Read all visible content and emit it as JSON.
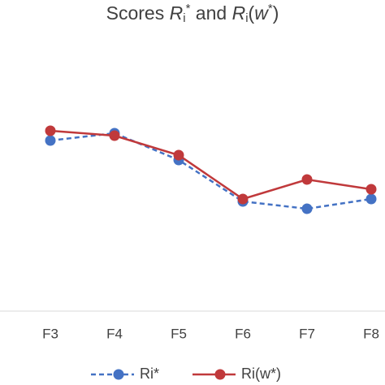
{
  "chart_data": {
    "type": "line",
    "title": [
      "Scores ",
      "R",
      "i",
      "*",
      " and ",
      "R",
      "i",
      "(",
      "w",
      "*",
      ")"
    ],
    "categories": [
      "F3",
      "F4",
      "F5",
      "F6",
      "F7",
      "F8"
    ],
    "ylim": [
      0,
      1
    ],
    "series": [
      {
        "name": "Ri*",
        "color": "#4472c4",
        "dashed": true,
        "values": [
          0.7,
          0.73,
          0.62,
          0.45,
          0.42,
          0.46
        ]
      },
      {
        "name": "Ri(w*)",
        "color": "#c0393b",
        "dashed": false,
        "values": [
          0.74,
          0.72,
          0.64,
          0.46,
          0.54,
          0.5
        ]
      }
    ]
  }
}
